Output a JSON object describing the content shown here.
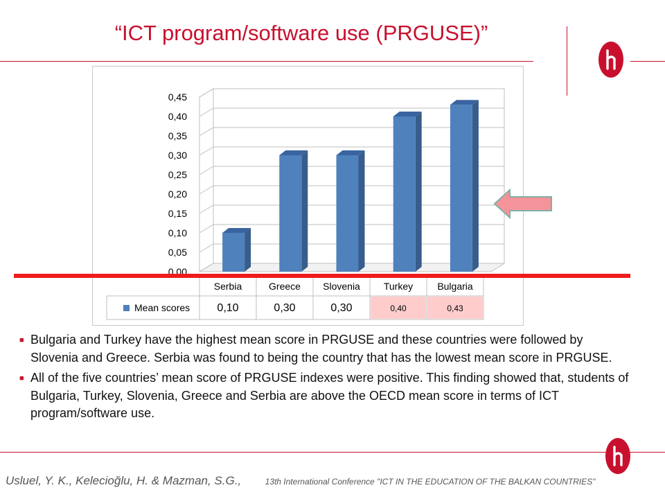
{
  "slide": {
    "title": "“ICT program/software use (PRGUSE)”",
    "bullets": [
      "Bulgaria and Turkey have the highest mean score in PRGUSE and these countries were followed by Slovenia and Greece. Serbia was found to being the country that has the lowest mean score in PRGUSE.",
      "All of the five countries’ mean score of PRGUSE indexes were positive. This finding showed that, students of Bulgaria, Turkey, Slovenia, Greece and Serbia are above the OECD mean score in terms of ICT program/software use."
    ],
    "footer_authors": "Usluel, Y. K., Kelecioğlu, H. & Mazman, S.G.,",
    "footer_conference": "13th International Conference \"ICT IN THE EDUCATION OF THE BALKAN COUNTRIES\"",
    "logo_letter": "h"
  },
  "colors": {
    "accent_red": "#c8102e",
    "bar_front": "#4f81bd",
    "bar_side": "#385d8a",
    "bar_top": "#3a64a0",
    "highlight_cell": "#ffcccc",
    "arrow_fill": "#f4949a",
    "arrow_border": "#7fb0a8"
  },
  "chart_data": {
    "type": "bar",
    "categories": [
      "Serbia",
      "Greece",
      "Slovenia",
      "Turkey",
      "Bulgaria"
    ],
    "series": [
      {
        "name": "Mean scores",
        "values": [
          0.1,
          0.3,
          0.3,
          0.4,
          0.43
        ]
      }
    ],
    "table_values": [
      "0,10",
      "0,30",
      "0,30",
      "0,40",
      "0,43"
    ],
    "highlighted_categories": [
      "Turkey",
      "Bulgaria"
    ],
    "ylim": [
      0,
      0.45
    ],
    "yticks": [
      "0,00",
      "0,05",
      "0,10",
      "0,15",
      "0,20",
      "0,25",
      "0,30",
      "0,35",
      "0,40",
      "0,45"
    ],
    "legend": "data-table",
    "grid": true,
    "three_d": true
  }
}
